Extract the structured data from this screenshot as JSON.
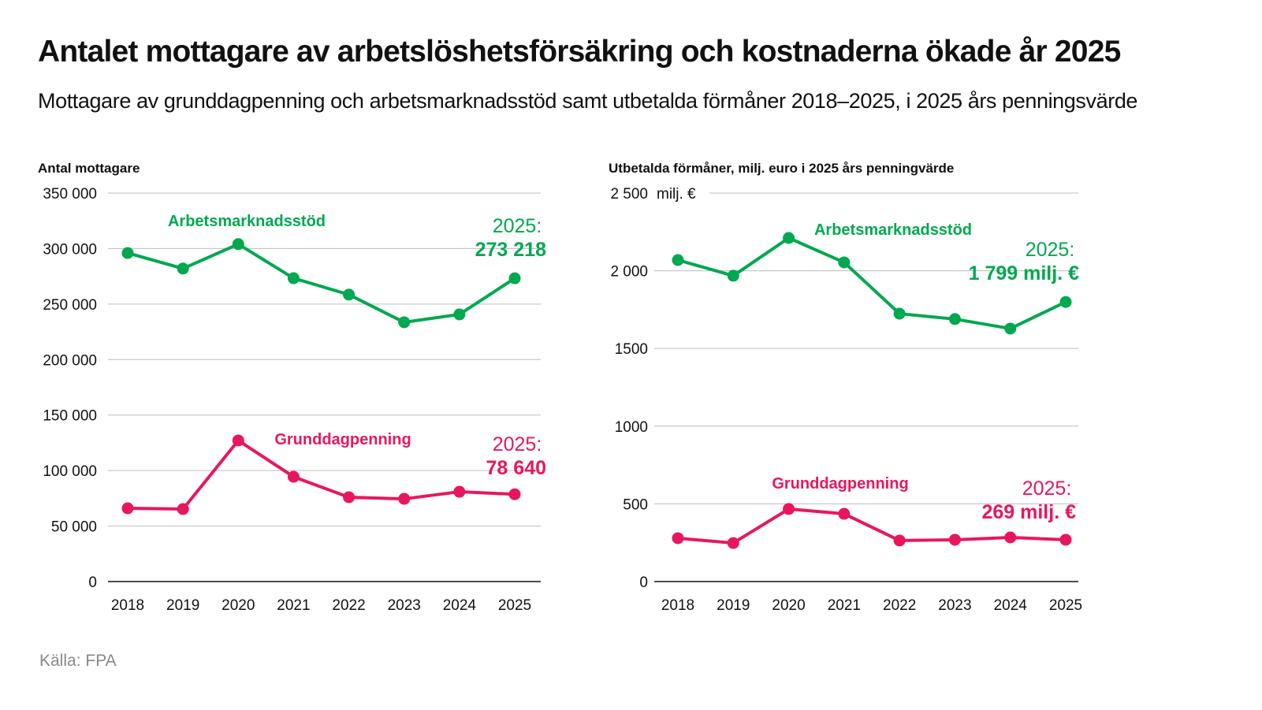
{
  "title": "Antalet mottagare av arbetslöshetsförsäkring och kostnaderna ökade år 2025",
  "subtitle": "Mottagare av grunddagpenning och arbetsmarknadsstöd samt utbetalda förmåner 2018–2025, i 2025 års penningsvärde",
  "source": "Källa: FPA",
  "colors": {
    "green": "#00a84f",
    "pink": "#e8175d",
    "grid": "#bdbdbd"
  },
  "chart_data": [
    {
      "type": "line",
      "ylabel": "Antal mottagare",
      "ylim": [
        0,
        350000
      ],
      "yticks": [
        0,
        50000,
        100000,
        150000,
        200000,
        250000,
        300000,
        350000
      ],
      "ytick_labels": [
        "0",
        "50 000",
        "100 000",
        "150 000",
        "200 000",
        "250 000",
        "300 000",
        "350 000"
      ],
      "categories": [
        "2018",
        "2019",
        "2020",
        "2021",
        "2022",
        "2023",
        "2024",
        "2025"
      ],
      "grid": true,
      "series": [
        {
          "name": "Arbetsmarknadsstöd",
          "color": "#00a84f",
          "values": [
            296000,
            282000,
            304000,
            273300,
            258500,
            233600,
            240700,
            273218
          ],
          "annotation_label": "2025:",
          "annotation_value": "273 218"
        },
        {
          "name": "Grunddagpenning",
          "color": "#e8175d",
          "values": [
            66000,
            65300,
            127100,
            94400,
            76000,
            74500,
            80900,
            78640
          ],
          "annotation_label": "2025:",
          "annotation_value": "78 640"
        }
      ]
    },
    {
      "type": "line",
      "ylabel": "Utbetalda förmåner, milj. euro i 2025 års penningvärde",
      "yunit": "milj. €",
      "ylim": [
        0,
        2500
      ],
      "yticks": [
        0,
        500,
        1000,
        1500,
        2000,
        2500
      ],
      "ytick_labels": [
        "0",
        "500",
        "1000",
        "1500",
        "2 000",
        "2 500"
      ],
      "categories": [
        "2018",
        "2019",
        "2020",
        "2021",
        "2022",
        "2023",
        "2024",
        "2025"
      ],
      "grid": true,
      "series": [
        {
          "name": "Arbetsmarknadsstöd",
          "color": "#00a84f",
          "values": [
            2069,
            1968,
            2211,
            2054,
            1724,
            1689,
            1628,
            1799
          ],
          "annotation_label": "2025:",
          "annotation_value": "1 799 milj. €"
        },
        {
          "name": "Grunddagpenning",
          "color": "#e8175d",
          "values": [
            279,
            248,
            467,
            436,
            264,
            269,
            284,
            269
          ],
          "annotation_label": "2025:",
          "annotation_value": "269 milj. €"
        }
      ]
    }
  ]
}
